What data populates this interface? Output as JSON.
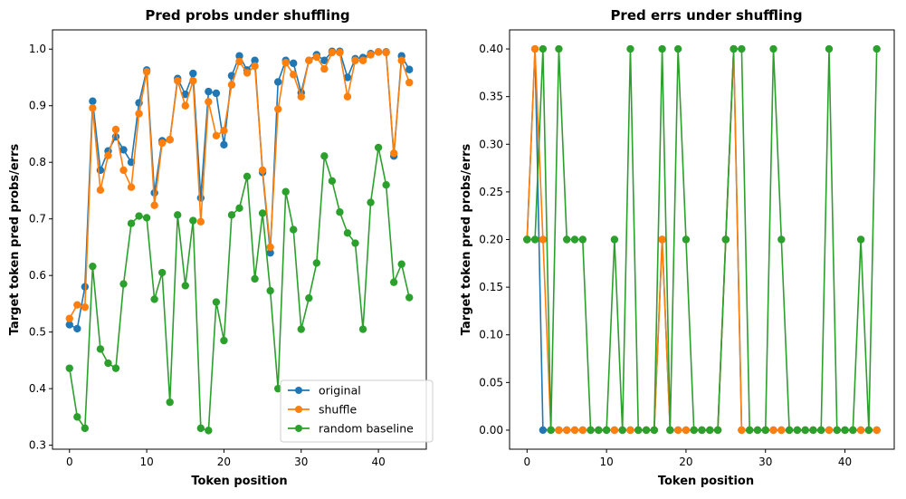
{
  "chart_data": [
    {
      "type": "line",
      "title": "Pred probs under shuffling",
      "xlabel": "Token position",
      "ylabel": "Target token pred probs/errs",
      "xlim": [
        -2.2,
        46.2
      ],
      "ylim": [
        0.293,
        1.034
      ],
      "xticks": [
        0,
        10,
        20,
        30,
        40
      ],
      "yticks": [
        0.3,
        0.4,
        0.5,
        0.6,
        0.7,
        0.8,
        0.9,
        1.0
      ],
      "ytick_decimals": 1,
      "legend": "lower-right",
      "x": [
        0,
        1,
        2,
        3,
        4,
        5,
        6,
        7,
        8,
        9,
        10,
        11,
        12,
        13,
        14,
        15,
        16,
        17,
        18,
        19,
        20,
        21,
        22,
        23,
        24,
        25,
        26,
        27,
        28,
        29,
        30,
        31,
        32,
        33,
        34,
        35,
        36,
        37,
        38,
        39,
        40,
        41,
        42,
        43,
        44
      ],
      "series": [
        {
          "name": "original",
          "color": "#1f77b4",
          "values": [
            0.513,
            0.506,
            0.58,
            0.908,
            0.786,
            0.82,
            0.845,
            0.822,
            0.8,
            0.905,
            0.963,
            0.746,
            0.838,
            0.84,
            0.948,
            0.92,
            0.957,
            0.737,
            0.925,
            0.922,
            0.831,
            0.953,
            0.988,
            0.963,
            0.98,
            0.782,
            0.64,
            0.942,
            0.98,
            0.975,
            0.923,
            0.98,
            0.99,
            0.98,
            0.996,
            0.996,
            0.95,
            0.983,
            0.985,
            0.992,
            0.995,
            0.995,
            0.811,
            0.988,
            0.964
          ]
        },
        {
          "name": "shuffle",
          "color": "#ff7f0e",
          "values": [
            0.524,
            0.548,
            0.544,
            0.896,
            0.751,
            0.812,
            0.858,
            0.786,
            0.756,
            0.886,
            0.96,
            0.724,
            0.834,
            0.84,
            0.944,
            0.9,
            0.944,
            0.695,
            0.907,
            0.847,
            0.856,
            0.937,
            0.978,
            0.958,
            0.97,
            0.786,
            0.65,
            0.894,
            0.976,
            0.955,
            0.916,
            0.98,
            0.986,
            0.965,
            0.994,
            0.994,
            0.916,
            0.98,
            0.98,
            0.99,
            0.995,
            0.994,
            0.816,
            0.98,
            0.941
          ]
        },
        {
          "name": "random baseline",
          "color": "#2ca02c",
          "values": [
            0.436,
            0.35,
            0.33,
            0.616,
            0.47,
            0.445,
            0.436,
            0.585,
            0.692,
            0.705,
            0.702,
            0.558,
            0.605,
            0.376,
            0.707,
            0.582,
            0.697,
            0.33,
            0.326,
            0.553,
            0.485,
            0.707,
            0.719,
            0.775,
            0.594,
            0.71,
            0.573,
            0.4,
            0.748,
            0.681,
            0.505,
            0.56,
            0.622,
            0.811,
            0.767,
            0.712,
            0.675,
            0.657,
            0.505,
            0.729,
            0.826,
            0.76,
            0.588,
            0.62,
            0.561
          ]
        }
      ]
    },
    {
      "type": "line",
      "title": "Pred errs under shuffling",
      "xlabel": "Token position",
      "ylabel": "Target token pred probs/errs",
      "xlim": [
        -2.2,
        46.2
      ],
      "ylim": [
        -0.02,
        0.42
      ],
      "xticks": [
        0,
        10,
        20,
        30,
        40
      ],
      "yticks": [
        0.0,
        0.05,
        0.1,
        0.15,
        0.2,
        0.25,
        0.3,
        0.35,
        0.4
      ],
      "ytick_decimals": 2,
      "x": [
        0,
        1,
        2,
        3,
        4,
        5,
        6,
        7,
        8,
        9,
        10,
        11,
        12,
        13,
        14,
        15,
        16,
        17,
        18,
        19,
        20,
        21,
        22,
        23,
        24,
        25,
        26,
        27,
        28,
        29,
        30,
        31,
        32,
        33,
        34,
        35,
        36,
        37,
        38,
        39,
        40,
        41,
        42,
        43,
        44
      ],
      "series": [
        {
          "color": "#1f77b4",
          "values": [
            0.2,
            0.4,
            0,
            0,
            0,
            0,
            0,
            0,
            0,
            0,
            0,
            0,
            0,
            0,
            0,
            0,
            0,
            0.2,
            0,
            0,
            0,
            0,
            0,
            0,
            0,
            0.2,
            0.4,
            0,
            0,
            0,
            0,
            0,
            0,
            0,
            0,
            0,
            0,
            0,
            0,
            0,
            0,
            0,
            0,
            0,
            0
          ]
        },
        {
          "color": "#ff7f0e",
          "values": [
            0.2,
            0.4,
            0.2,
            0,
            0,
            0,
            0,
            0,
            0,
            0,
            0,
            0,
            0,
            0,
            0,
            0,
            0,
            0.2,
            0,
            0,
            0,
            0,
            0,
            0,
            0,
            0.2,
            0.4,
            0,
            0,
            0,
            0,
            0,
            0,
            0,
            0,
            0,
            0,
            0,
            0,
            0,
            0,
            0,
            0,
            0,
            0
          ]
        },
        {
          "color": "#2ca02c",
          "values": [
            0.2,
            0.2,
            0.4,
            0,
            0.4,
            0.2,
            0.2,
            0.2,
            0,
            0,
            0,
            0.2,
            0,
            0.4,
            0,
            0,
            0,
            0.4,
            0,
            0.4,
            0.2,
            0,
            0,
            0,
            0,
            0.2,
            0.4,
            0.4,
            0,
            0,
            0,
            0.4,
            0.2,
            0,
            0,
            0,
            0,
            0,
            0.4,
            0,
            0,
            0,
            0.2,
            0,
            0.4
          ]
        }
      ]
    }
  ]
}
